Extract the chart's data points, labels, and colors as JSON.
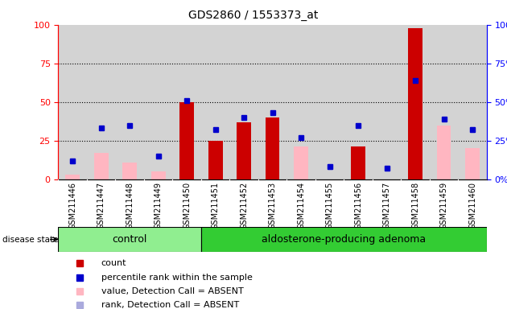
{
  "title": "GDS2860 / 1553373_at",
  "samples": [
    "GSM211446",
    "GSM211447",
    "GSM211448",
    "GSM211449",
    "GSM211450",
    "GSM211451",
    "GSM211452",
    "GSM211453",
    "GSM211454",
    "GSM211455",
    "GSM211456",
    "GSM211457",
    "GSM211458",
    "GSM211459",
    "GSM211460"
  ],
  "count": [
    0,
    0,
    0,
    0,
    50,
    25,
    37,
    40,
    0,
    0,
    21,
    0,
    98,
    0,
    0
  ],
  "percentile_rank": [
    12,
    33,
    35,
    15,
    51,
    32,
    40,
    43,
    27,
    8,
    35,
    7,
    64,
    39,
    32
  ],
  "value_absent": [
    3,
    17,
    11,
    5,
    0,
    0,
    0,
    0,
    21,
    0,
    0,
    0,
    0,
    35,
    20
  ],
  "rank_absent": [
    12,
    0,
    0,
    15,
    0,
    0,
    0,
    0,
    0,
    8,
    0,
    7,
    0,
    0,
    32
  ],
  "n_control": 5,
  "bar_color_count": "#cc0000",
  "bar_color_value_absent": "#ffb6c1",
  "marker_color_percentile": "#0000cc",
  "marker_color_rank_absent": "#aaaadd",
  "yticks": [
    0,
    25,
    50,
    75,
    100
  ],
  "ylim": [
    0,
    100
  ],
  "bg_color": "#d3d3d3",
  "control_bg": "#90ee90",
  "adenoma_bg": "#33cc33",
  "disease_state_label": "disease state",
  "control_label": "control",
  "adenoma_label": "aldosterone-producing adenoma",
  "legend_items": [
    {
      "color": "#cc0000",
      "label": "count"
    },
    {
      "color": "#0000cc",
      "label": "percentile rank within the sample"
    },
    {
      "color": "#ffb6c1",
      "label": "value, Detection Call = ABSENT"
    },
    {
      "color": "#aaaadd",
      "label": "rank, Detection Call = ABSENT"
    }
  ]
}
